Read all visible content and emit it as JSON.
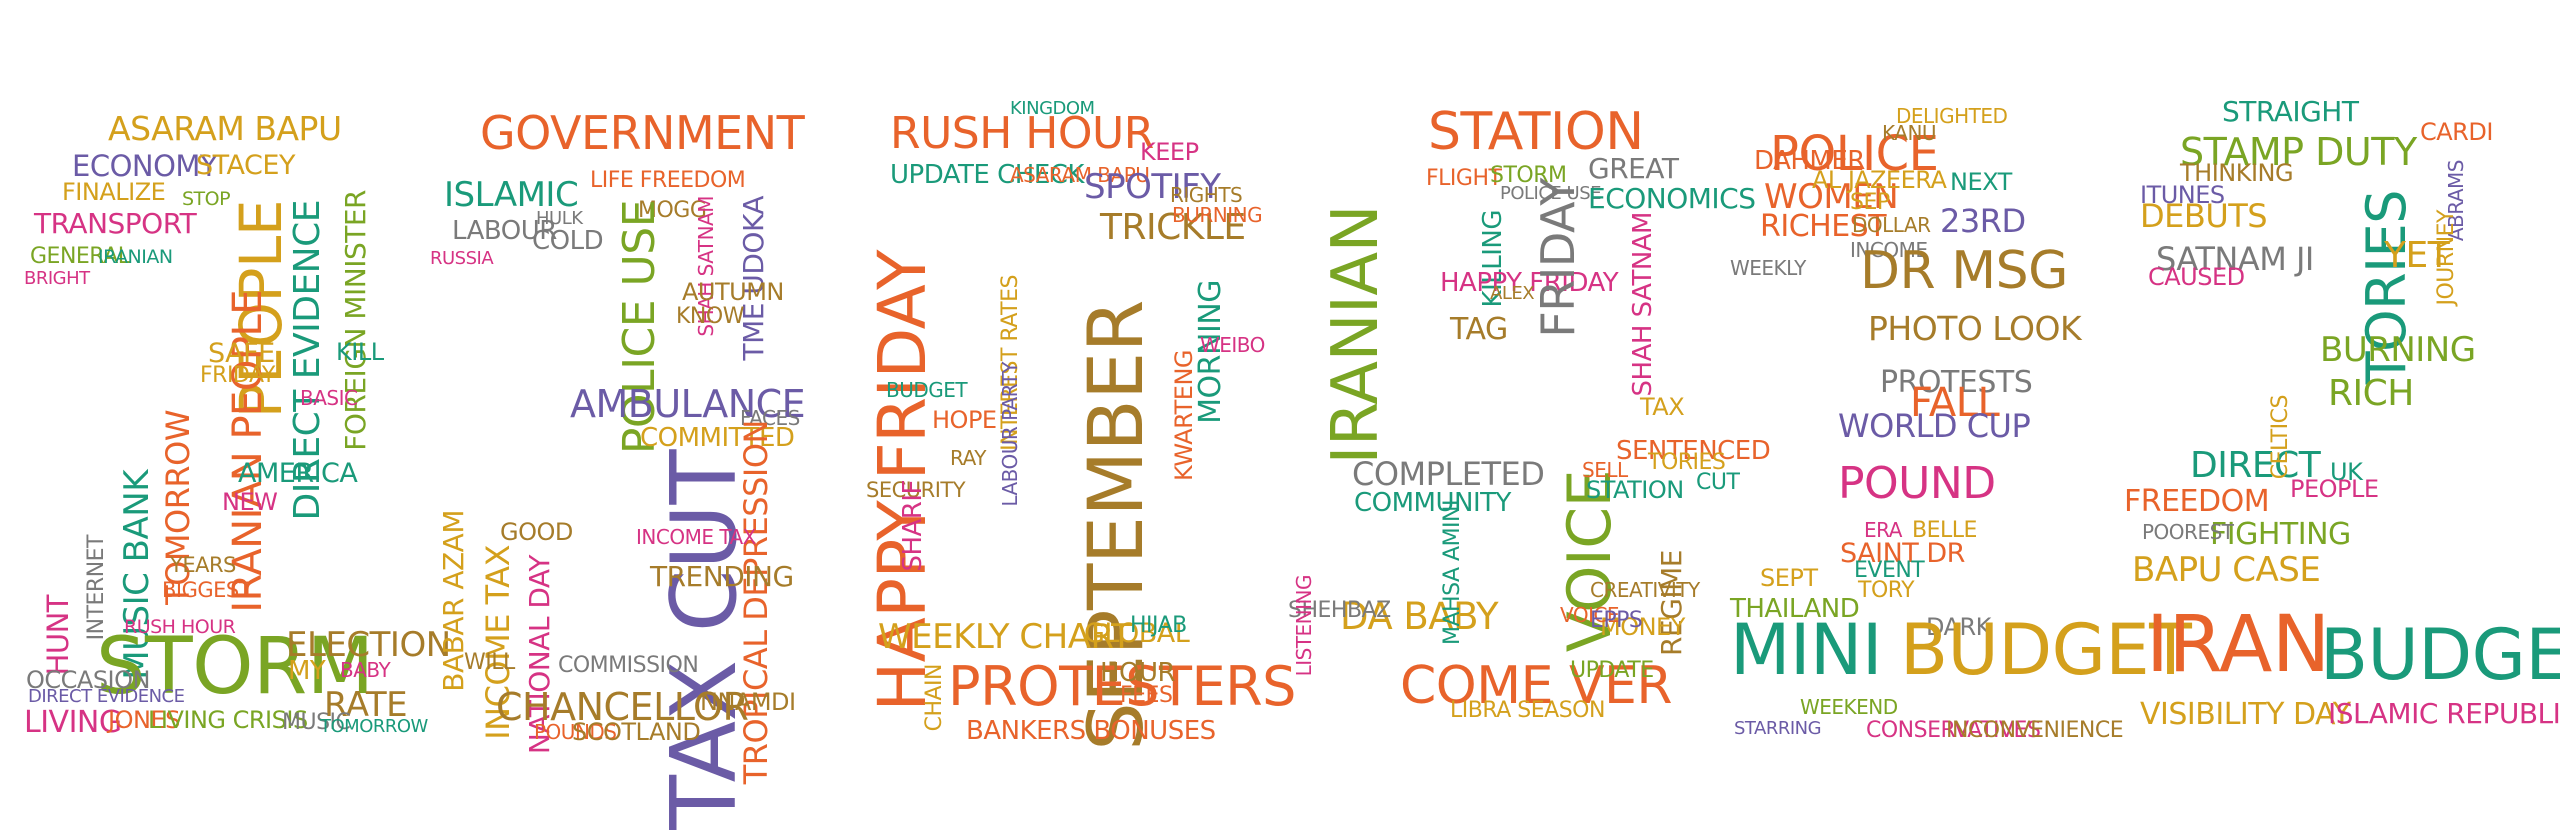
{
  "colors": {
    "background": "#ffffff",
    "palette": [
      "#e8632b",
      "#d4a01c",
      "#7aa524",
      "#1a9a7a",
      "#6b5ba6",
      "#d63384",
      "#a67c2a",
      "#7a7a7a"
    ]
  },
  "word_cloud": {
    "date_shape": "23/09/22",
    "words": [
      "ASARAM BAPU",
      "ECONOMY",
      "STACEY",
      "PEOPLE",
      "FINALIZE",
      "STOP",
      "TRANSPORT",
      "GENERAL",
      "IRANIAN",
      "BRIGHT",
      "DIRECT EVIDENCE",
      "FOREIGN MINISTER",
      "IRANIAN PEOPLE",
      "TOMORROW",
      "AMERICA",
      "NEW",
      "MUSIC BANK",
      "YEARS",
      "BIGGEST",
      "HUNT",
      "INTERNET",
      "STORM",
      "OCCASION",
      "DIRECT EVIDENCE",
      "LIVING",
      "JONES",
      "LIVING CRISIS",
      "ELECTION",
      "MY",
      "BABY",
      "RATE",
      "MUSIC",
      "TOMORROW",
      "RUSH HOUR",
      "KILL",
      "BASIC",
      "SAFE",
      "FRIDAY",
      "GOVERNMENT",
      "ISLAMIC",
      "LABOUR",
      "RUSSIA",
      "HULK",
      "COLD",
      "LIFE FREEDOM",
      "MOGG",
      "POLICE USE",
      "SHAH SATNAM",
      "TME UDOKA",
      "AUTUMN",
      "KNOW",
      "AMBULANCE",
      "FACES",
      "COMMITTED",
      "TAX CUT",
      "TROPICAL DEPRESSION",
      "TRENDING",
      "INCOME TAX",
      "BABAR AZAM",
      "INCOME TAX",
      "NATIONAL DAY",
      "COMMISSION",
      "CHANCELLOR",
      "NNAMDI",
      "POUNDS",
      "SCOTLAND",
      "WILL",
      "GOOD",
      "RUSH HOUR",
      "KINGDOM",
      "UPDATE CHECK",
      "ASARAM BAPU",
      "SPOTIFY",
      "KEEP",
      "TRICKLE",
      "RIGHTS",
      "BURNING",
      "HAPPY FRIDAY",
      "SEPTEMBER",
      "KWARTENG",
      "MORNING",
      "WEIBO",
      "HOPE",
      "RAY",
      "BUDGET",
      "SECURITY",
      "SHARIF",
      "INTEREST RATES",
      "LABOUR PARTY",
      "WEEKLY CHART",
      "PROTESTERS",
      "HOUR",
      "GLOBAL",
      "HIJAB",
      "BANKERS BONUSES",
      "FEES",
      "CHAIN",
      "STATION",
      "IRANIAN",
      "FLIGHT",
      "STORM",
      "POLICE USE",
      "GREAT",
      "ECONOMICS",
      "KILLING",
      "HAPPY FRIDAY",
      "TAG",
      "ALEX",
      "VOICE",
      "FRIDAY",
      "SHAH SATNAM",
      "TAX",
      "COMPLETED",
      "COMMUNITY",
      "SENTENCED",
      "SELL",
      "TORIES",
      "CUT",
      "REGIME",
      "MONEY",
      "DA BABY",
      "COME VER",
      "LIBRA SEASON",
      "UPDATE",
      "MAHSA AMINI",
      "STATION",
      "POLICE",
      "WOMEN",
      "RICHEST",
      "AL JAZEERA",
      "SEP",
      "DOLLAR",
      "INCOME",
      "NEXT",
      "23RD",
      "DR MSG",
      "PHOTO LOOK",
      "PROTESTS",
      "FALL",
      "WORLD CUP",
      "POUND",
      "SAINT DR",
      "BELLE",
      "TORY",
      "DARK",
      "MINI",
      "BUDGET",
      "WEEKEND",
      "CONSERVATIVES",
      "INCONVENIENCE",
      "WEEKLY",
      "DELIGHTED",
      "KANU",
      "DAHMER",
      "STARRING",
      "STRAIGHT",
      "STAMP DUTY",
      "ITUNES",
      "DEBUTS",
      "THINKING",
      "SATNAM JI",
      "CAUSED",
      "TORIES",
      "YET",
      "BURNING",
      "RICH",
      "DIRECT",
      "UK",
      "FREEDOM",
      "PEOPLE",
      "BAPU CASE",
      "FIGHTING",
      "POOREST",
      "IRAN",
      "BUDGET",
      "VISIBILITY DAY",
      "ISLAMIC REPUBLIC",
      "CELTICS",
      "CARDI",
      "ABRAMS",
      "JOURNEY",
      "SEPT",
      "THAILAND",
      "EVENT",
      "VOICE",
      "ERA",
      "SHEHBAZ",
      "LISTENING",
      "CREATIVITY",
      "EPPS"
    ]
  }
}
